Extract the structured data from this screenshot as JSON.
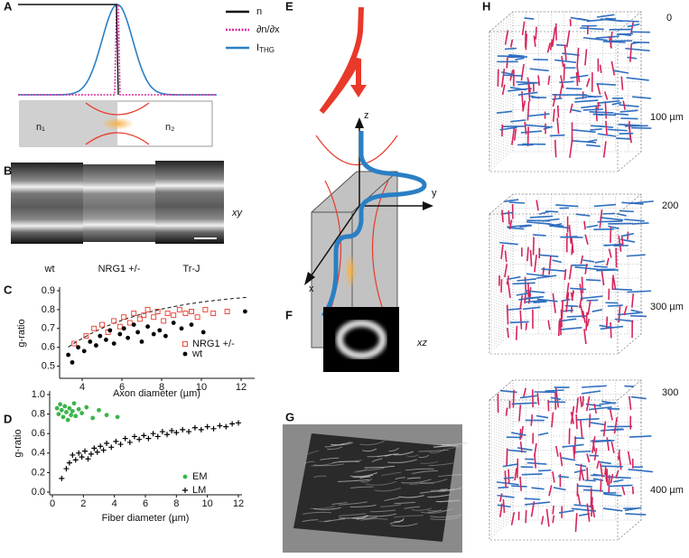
{
  "panel_letters": [
    "A",
    "B",
    "C",
    "D",
    "E",
    "F",
    "G",
    "H"
  ],
  "panel_a": {
    "legend": [
      "n",
      "∂n/∂x",
      {
        "main": "I",
        "sub": "THG"
      }
    ],
    "media": [
      "n₁",
      "n₂"
    ]
  },
  "panel_b": {
    "samples": [
      "wt",
      "NRG1 +/-",
      "Tr-J"
    ],
    "plane": "xy"
  },
  "panel_e": {
    "axes": [
      "z",
      "y",
      "x"
    ]
  },
  "panel_f": {
    "plane": "xz"
  },
  "panel_h": {
    "depths": [
      "0",
      "100 µm",
      "200",
      "300 µm",
      "300",
      "400 µm"
    ]
  },
  "chart_data": [
    {
      "type": "scatter",
      "x_label": "Axon diameter (µm)",
      "y_label": "g-ratio",
      "xlim": [
        3,
        12.5
      ],
      "ylim": [
        0.45,
        0.9
      ],
      "xticks": [
        4,
        6,
        8,
        10,
        12
      ],
      "yticks": [
        0.5,
        0.6,
        0.7,
        0.8,
        0.9
      ],
      "series": [
        {
          "name": "NRG1 +/-",
          "color": "#e8392b",
          "marker": "square",
          "x": [
            3.6,
            4.2,
            4.6,
            5.0,
            5.3,
            5.6,
            5.9,
            6.1,
            6.4,
            6.6,
            6.9,
            7.1,
            7.3,
            7.6,
            7.8,
            8.1,
            8.3,
            8.6,
            8.9,
            9.2,
            9.5,
            9.8,
            10.2,
            10.6,
            11.3
          ],
          "values": [
            0.62,
            0.66,
            0.7,
            0.72,
            0.68,
            0.74,
            0.71,
            0.76,
            0.73,
            0.78,
            0.75,
            0.77,
            0.8,
            0.76,
            0.79,
            0.74,
            0.78,
            0.77,
            0.8,
            0.78,
            0.79,
            0.76,
            0.8,
            0.78,
            0.79
          ]
        },
        {
          "name": "wt",
          "color": "#000000",
          "marker": "dot",
          "x": [
            3.3,
            3.5,
            3.8,
            4.1,
            4.4,
            4.7,
            4.9,
            5.2,
            5.4,
            5.6,
            5.9,
            6.1,
            6.3,
            6.6,
            6.8,
            7.0,
            7.3,
            7.6,
            7.9,
            8.2,
            8.6,
            9.0,
            9.5,
            10.1,
            12.2
          ],
          "values": [
            0.56,
            0.52,
            0.6,
            0.58,
            0.63,
            0.61,
            0.66,
            0.64,
            0.69,
            0.62,
            0.67,
            0.7,
            0.65,
            0.72,
            0.68,
            0.63,
            0.71,
            0.67,
            0.69,
            0.66,
            0.73,
            0.7,
            0.72,
            0.68,
            0.79
          ]
        }
      ]
    },
    {
      "type": "scatter",
      "x_label": "Fiber diameter (µm)",
      "y_label": "g-ratio",
      "xlim": [
        0,
        12
      ],
      "ylim": [
        0,
        1
      ],
      "xticks": [
        0,
        2,
        4,
        6,
        8,
        10,
        12
      ],
      "yticks": [
        {
          "value": 0,
          "label": "0.0"
        },
        0.2,
        0.4,
        0.6,
        0.8,
        {
          "value": 1,
          "label": "1.0"
        }
      ],
      "series": [
        {
          "name": "EM",
          "color": "#3cb44b",
          "marker": "dot",
          "x": [
            0.3,
            0.4,
            0.5,
            0.6,
            0.7,
            0.8,
            0.9,
            1.0,
            1.1,
            1.2,
            1.3,
            1.4,
            1.5,
            1.7,
            1.9,
            2.2,
            2.6,
            3.0,
            3.5,
            4.2
          ],
          "values": [
            0.86,
            0.8,
            0.9,
            0.84,
            0.77,
            0.88,
            0.82,
            0.74,
            0.86,
            0.79,
            0.83,
            0.91,
            0.78,
            0.85,
            0.81,
            0.87,
            0.76,
            0.84,
            0.79,
            0.77
          ]
        },
        {
          "name": "LM",
          "color": "#000000",
          "marker": "plus",
          "x": [
            0.6,
            0.9,
            1.1,
            1.3,
            1.5,
            1.7,
            1.9,
            2.1,
            2.3,
            2.5,
            2.7,
            2.9,
            3.1,
            3.3,
            3.5,
            3.8,
            4.1,
            4.4,
            4.7,
            5.0,
            5.3,
            5.6,
            5.9,
            6.2,
            6.5,
            6.8,
            7.1,
            7.4,
            7.7,
            8.0,
            8.4,
            8.8,
            9.2,
            9.6,
            10.0,
            10.4,
            10.8,
            11.2,
            11.6,
            12.0
          ],
          "values": [
            0.14,
            0.24,
            0.3,
            0.38,
            0.33,
            0.4,
            0.36,
            0.42,
            0.34,
            0.39,
            0.45,
            0.41,
            0.47,
            0.43,
            0.5,
            0.46,
            0.52,
            0.49,
            0.55,
            0.51,
            0.57,
            0.54,
            0.58,
            0.55,
            0.6,
            0.57,
            0.62,
            0.59,
            0.63,
            0.61,
            0.64,
            0.62,
            0.66,
            0.64,
            0.67,
            0.65,
            0.68,
            0.67,
            0.7,
            0.71
          ]
        }
      ]
    }
  ]
}
